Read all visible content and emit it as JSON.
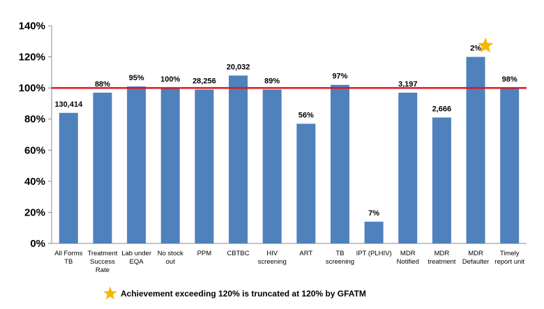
{
  "chart_data": {
    "type": "bar",
    "title": "",
    "xlabel": "",
    "ylabel": "",
    "ylim": [
      0,
      140
    ],
    "yticks": [
      "0%",
      "20%",
      "40%",
      "60%",
      "80%",
      "100%",
      "120%",
      "140%"
    ],
    "grid": false,
    "categories": [
      [
        "All Forms",
        "TB"
      ],
      [
        "Treatment",
        "Success",
        "Rate"
      ],
      [
        "Lab under",
        "EQA"
      ],
      [
        "No stock",
        "out"
      ],
      [
        "PPM"
      ],
      [
        "CBTBC"
      ],
      [
        "HIV",
        "screening"
      ],
      [
        "ART"
      ],
      [
        "TB",
        "screening"
      ],
      [
        "IPT (PLHIV)"
      ],
      [
        "MDR",
        "Notified"
      ],
      [
        "MDR",
        "treatment"
      ],
      [
        "MDR",
        "Defaulter"
      ],
      [
        "Timely",
        "report unit"
      ]
    ],
    "values": [
      84,
      97,
      101,
      100,
      99,
      108,
      99,
      77,
      102,
      14,
      97,
      81,
      120,
      100
    ],
    "data_labels": [
      "130,414",
      "88%",
      "95%",
      "100%",
      "28,256",
      "20,032",
      "89%",
      "56%",
      "97%",
      "7%",
      "3,197",
      "2,666",
      "2%",
      "98%"
    ],
    "target_line": 100,
    "bar_color": "#4f81bd",
    "target_color": "#e0141e",
    "star_color": "#f5b800",
    "starred_bar_index": 12
  },
  "footnote": {
    "icon": "star-icon",
    "text": "Achievement exceeding 120% is truncated at 120% by GFATM"
  }
}
